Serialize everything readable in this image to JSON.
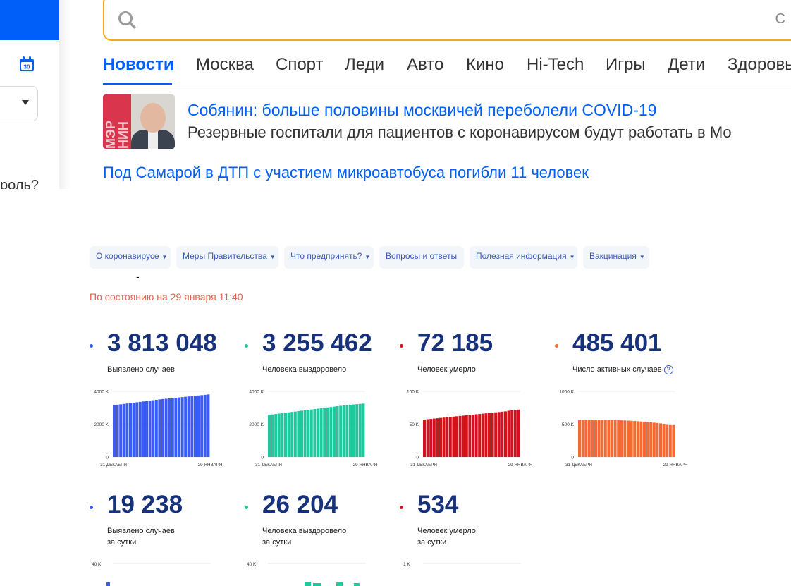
{
  "mailru": {
    "left_question": "роль?",
    "search_hint": "С",
    "tabs": [
      {
        "label": "Новости",
        "active": true
      },
      {
        "label": "Москва"
      },
      {
        "label": "Спорт"
      },
      {
        "label": "Леди"
      },
      {
        "label": "Авто"
      },
      {
        "label": "Кино"
      },
      {
        "label": "Hi-Tech"
      },
      {
        "label": "Игры"
      },
      {
        "label": "Дети"
      },
      {
        "label": "Здоровье"
      }
    ],
    "news": {
      "image_text": "МЭР НИН",
      "title": "Собянин: больше половины москвичей переболели COVID-19",
      "subtitle": "Резервные госпитали для пациентов с коронавирусом будут работать в Мо",
      "link": "Под Самарой в ДТП с участием микроавтобуса погибли 11 человек"
    },
    "colors": {
      "accent": "#005ff9",
      "search_border": "#f5a623"
    }
  },
  "corona": {
    "nav": [
      {
        "label": "О коронавирусе",
        "dropdown": true
      },
      {
        "label": "Меры Правительства",
        "dropdown": true
      },
      {
        "label": "Что предпринять?",
        "dropdown": true
      },
      {
        "label": "Вопросы и ответы",
        "dropdown": false
      },
      {
        "label": "Полезная информация",
        "dropdown": true
      },
      {
        "label": "Вакцинация",
        "dropdown": true
      }
    ],
    "dash": "-",
    "as_of": "По состоянию на 29 января 11:40",
    "stats": [
      {
        "value": "3 813 048",
        "label": "Выявлено случаев",
        "color": "#3a5cf2"
      },
      {
        "value": "3 255 462",
        "label": "Человека выздоровело",
        "color": "#1ec99e"
      },
      {
        "value": "72 185",
        "label": "Человек умерло",
        "color": "#d2121d"
      },
      {
        "value": "485 401",
        "label": "Число активных случаев",
        "color": "#f46a35"
      }
    ],
    "daily": [
      {
        "value": "19 238",
        "label": "Выявлено случаев",
        "label2": "за сутки",
        "color": "#3a5cf2",
        "top_tick": "40 K"
      },
      {
        "value": "26 204",
        "label": "Человека выздоровело",
        "label2": "за сутки",
        "color": "#1ec99e",
        "top_tick": "40 K"
      },
      {
        "value": "534",
        "label": "Человек умерло",
        "label2": "за сутки",
        "color": "#d2121d",
        "top_tick": "1 K"
      }
    ]
  },
  "chart_data": [
    {
      "type": "bar",
      "color": "#3a5cf2",
      "x_start": "31 ДЕКАБРЯ",
      "x_end": "29 ЯНВАРЯ",
      "yticks": [
        "4000 K",
        "2000 K",
        "0"
      ],
      "ylim": [
        0,
        4000
      ],
      "values": [
        3160,
        3185,
        3210,
        3235,
        3260,
        3285,
        3310,
        3335,
        3360,
        3385,
        3410,
        3435,
        3460,
        3485,
        3510,
        3530,
        3550,
        3570,
        3590,
        3610,
        3630,
        3650,
        3670,
        3690,
        3710,
        3730,
        3750,
        3770,
        3790,
        3813
      ]
    },
    {
      "type": "bar",
      "color": "#1ec99e",
      "x_start": "31 ДЕКАБРЯ",
      "x_end": "29 ЯНВАРЯ",
      "yticks": [
        "4000 K",
        "2000 K",
        "0"
      ],
      "ylim": [
        0,
        4000
      ],
      "values": [
        2570,
        2595,
        2620,
        2645,
        2670,
        2695,
        2720,
        2745,
        2770,
        2795,
        2820,
        2845,
        2870,
        2895,
        2920,
        2945,
        2970,
        2995,
        3020,
        3045,
        3070,
        3095,
        3120,
        3140,
        3160,
        3180,
        3200,
        3220,
        3240,
        3255
      ]
    },
    {
      "type": "bar",
      "color": "#d2121d",
      "x_start": "31 ДЕКАБРЯ",
      "x_end": "29 ЯНВАРЯ",
      "yticks": [
        "100 K",
        "50 K",
        "0"
      ],
      "ylim": [
        0,
        100
      ],
      "values": [
        57.0,
        57.5,
        58.0,
        58.5,
        59.0,
        59.5,
        60.0,
        60.5,
        61.0,
        61.5,
        62.0,
        62.5,
        63.0,
        63.5,
        64.0,
        64.5,
        65.0,
        65.5,
        66.0,
        66.5,
        67.0,
        67.5,
        68.0,
        68.5,
        69.0,
        69.5,
        70.5,
        71.0,
        71.6,
        72.2
      ]
    },
    {
      "type": "bar",
      "color": "#f46a35",
      "x_start": "31 ДЕКАБРЯ",
      "x_end": "29 ЯНВАРЯ",
      "yticks": [
        "1000 K",
        "500 K",
        "0"
      ],
      "ylim": [
        0,
        1000
      ],
      "values": [
        560,
        562,
        564,
        565,
        566,
        566,
        566,
        566,
        565,
        564,
        563,
        562,
        560,
        558,
        556,
        554,
        551,
        548,
        545,
        541,
        537,
        533,
        528,
        523,
        518,
        512,
        506,
        499,
        492,
        485
      ]
    }
  ]
}
